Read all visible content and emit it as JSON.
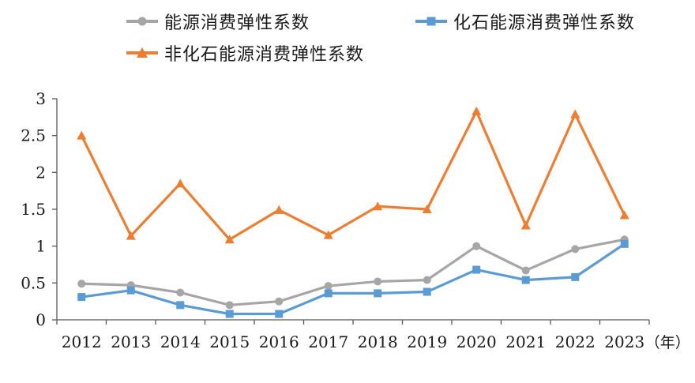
{
  "chart_data": {
    "type": "line",
    "categories": [
      "2012",
      "2013",
      "2014",
      "2015",
      "2016",
      "2017",
      "2018",
      "2019",
      "2020",
      "2021",
      "2022",
      "2023"
    ],
    "x_unit_label": "（年）",
    "ylim": [
      0,
      3
    ],
    "yticks": [
      "0",
      "0.5",
      "1",
      "1.5",
      "2",
      "2.5",
      "3"
    ],
    "grid": false,
    "legend_position": "top",
    "series": [
      {
        "name": "能源消费弹性系数",
        "color": "#a6a6a6",
        "marker": "circle",
        "values": [
          0.49,
          0.47,
          0.37,
          0.2,
          0.25,
          0.46,
          0.52,
          0.54,
          1.0,
          0.67,
          0.96,
          1.09
        ]
      },
      {
        "name": "化石能源消费弹性系数",
        "color": "#5b9bd5",
        "marker": "square",
        "values": [
          0.31,
          0.4,
          0.2,
          0.08,
          0.08,
          0.36,
          0.36,
          0.38,
          0.68,
          0.54,
          0.58,
          1.03
        ]
      },
      {
        "name": "非化石能源消费弹性系数",
        "color": "#ed7d31",
        "marker": "triangle",
        "values": [
          2.5,
          1.14,
          1.85,
          1.09,
          1.49,
          1.15,
          1.54,
          1.5,
          2.83,
          1.28,
          2.79,
          1.42
        ]
      }
    ]
  }
}
